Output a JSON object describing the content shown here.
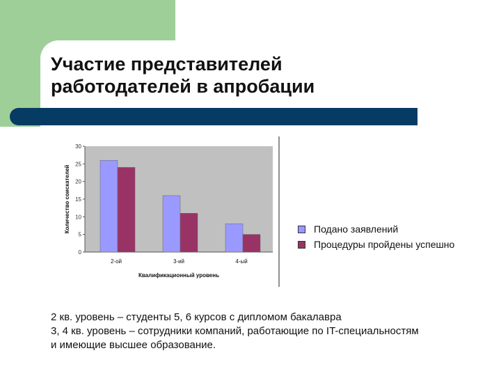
{
  "slide": {
    "title_lines": [
      "Участие представителей",
      "работодателей в апробации"
    ],
    "footnote_lines": [
      "2 кв. уровень – студенты 5, 6 курсов с дипломом бакалавра",
      "3, 4 кв. уровень – сотрудники компаний, работающие по IT-специальностям",
      "и имеющие высшее образование."
    ],
    "colors": {
      "green_block": "#9fcf98",
      "band": "#063b63"
    }
  },
  "chart_data": {
    "type": "bar",
    "categories": [
      "2-ой",
      "3-ий",
      "4-ый"
    ],
    "series": [
      {
        "name": "Подано заявлений",
        "values": [
          26,
          16,
          8
        ],
        "color": "#9999ff"
      },
      {
        "name": "Процедуры пройдены успешно",
        "values": [
          24,
          11,
          5
        ],
        "color": "#993366"
      }
    ],
    "xlabel": "Квалификационный уровень",
    "ylabel": "Количество соискателей",
    "ylim": [
      0,
      30
    ],
    "yticks": [
      0,
      5,
      10,
      15,
      20,
      25,
      30
    ],
    "grid": false,
    "legend_position": "right",
    "plot_background": "#c0c0c0"
  }
}
